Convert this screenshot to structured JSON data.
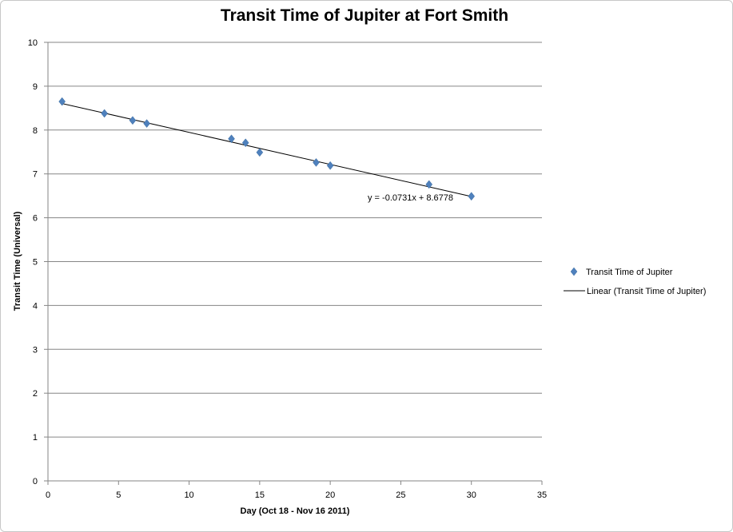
{
  "chart_data": {
    "type": "scatter",
    "title": "Transit Time of Jupiter at Fort Smith",
    "xlabel": "Day  (Oct 18 - Nov 16 2011)",
    "ylabel": "Transit  Time (Universal)",
    "xlim": [
      0,
      35
    ],
    "ylim": [
      0,
      10
    ],
    "xticks": [
      0,
      5,
      10,
      15,
      20,
      25,
      30,
      35
    ],
    "yticks": [
      0,
      1,
      2,
      3,
      4,
      5,
      6,
      7,
      8,
      9,
      10
    ],
    "grid": "horizontal",
    "legend_position": "right",
    "series": [
      {
        "name": "Transit Time of Jupiter",
        "color": "#4f81bd",
        "marker": "diamond",
        "points": [
          {
            "x": 1,
            "y": 8.65
          },
          {
            "x": 4,
            "y": 8.38
          },
          {
            "x": 6,
            "y": 8.22
          },
          {
            "x": 7,
            "y": 8.15
          },
          {
            "x": 13,
            "y": 7.8
          },
          {
            "x": 14,
            "y": 7.71
          },
          {
            "x": 15,
            "y": 7.49
          },
          {
            "x": 19,
            "y": 7.26
          },
          {
            "x": 20,
            "y": 7.19
          },
          {
            "x": 27,
            "y": 6.76
          },
          {
            "x": 30,
            "y": 6.49
          }
        ]
      }
    ],
    "trendline": {
      "name": "Linear (Transit Time of Jupiter)",
      "slope": -0.0731,
      "intercept": 8.6778,
      "x_range": [
        1,
        30
      ],
      "color": "#000000",
      "equation_label": "y = -0.0731x + 8.6778"
    }
  }
}
